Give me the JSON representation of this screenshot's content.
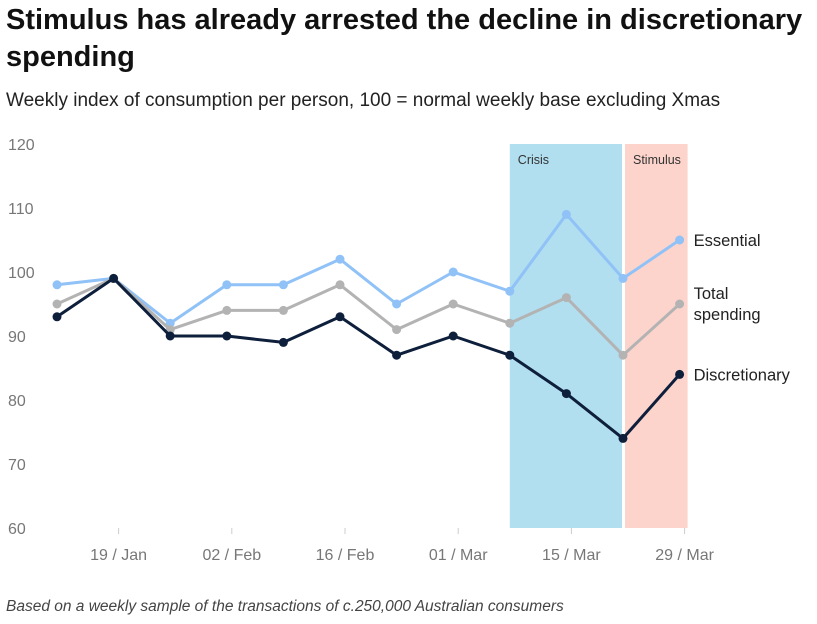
{
  "chart_data": {
    "type": "line",
    "title": "Stimulus has already arrested the decline in discretionary spending",
    "subtitle": "Weekly index of consumption per person, 100 = normal weekly base excluding Xmas",
    "footnote": "Based on a weekly sample of the transactions of c.250,000 Australian consumers",
    "x_ticks": [
      "19 / Jan",
      "02 / Feb",
      "16 / Feb",
      "01 / Mar",
      "15 / Mar",
      "29 / Mar"
    ],
    "y_ticks": [
      60,
      70,
      80,
      90,
      100,
      110,
      120
    ],
    "ylim": [
      60,
      120
    ],
    "x_count": 12,
    "series": [
      {
        "name": "Essential",
        "label_lines": [
          "Essential"
        ],
        "color": "#90c2f7",
        "values": [
          98,
          99,
          92,
          98,
          98,
          102,
          95,
          100,
          97,
          109,
          99,
          105
        ]
      },
      {
        "name": "Total spending",
        "label_lines": [
          "Total",
          "spending"
        ],
        "color": "#b3b3b3",
        "values": [
          95,
          99,
          91,
          94,
          94,
          98,
          91,
          95,
          92,
          96,
          87,
          95
        ]
      },
      {
        "name": "Discretionary",
        "label_lines": [
          "Discretionary"
        ],
        "color": "#0e1f3c",
        "values": [
          93,
          99,
          90,
          90,
          89,
          93,
          87,
          90,
          87,
          81,
          74,
          84
        ]
      }
    ],
    "bands": [
      {
        "label": "Crisis",
        "color": "#b1dff0",
        "from_index": 8,
        "to_index": 10
      },
      {
        "label": "Stimulus",
        "color": "#fdd4cc",
        "from_index": 10,
        "to_index": 11
      }
    ]
  }
}
